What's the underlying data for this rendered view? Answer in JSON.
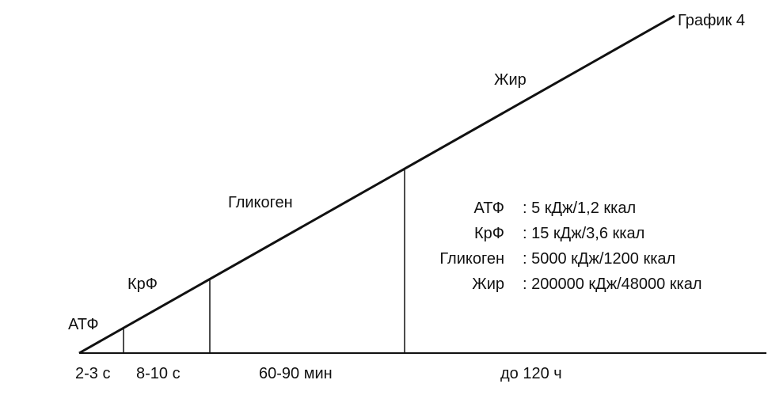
{
  "graph_title": "График 4",
  "zones": [
    {
      "name": "АТФ",
      "duration": "2-3 с"
    },
    {
      "name": "КрФ",
      "duration": "8-10 с"
    },
    {
      "name": "Гликоген",
      "duration": "60-90 мин"
    },
    {
      "name": "Жир",
      "duration": "до 120 ч"
    }
  ],
  "energy_table": [
    {
      "name": "АТФ",
      "value": ": 5 кДж/1,2 ккал"
    },
    {
      "name": "КрФ",
      "value": ": 15 кДж/3,6 ккал"
    },
    {
      "name": "Гликоген",
      "value": ": 5000 кДж/1200 ккал"
    },
    {
      "name": "Жир",
      "value": ": 200000 кДж/48000 ккал"
    }
  ],
  "line_color": "#111111"
}
